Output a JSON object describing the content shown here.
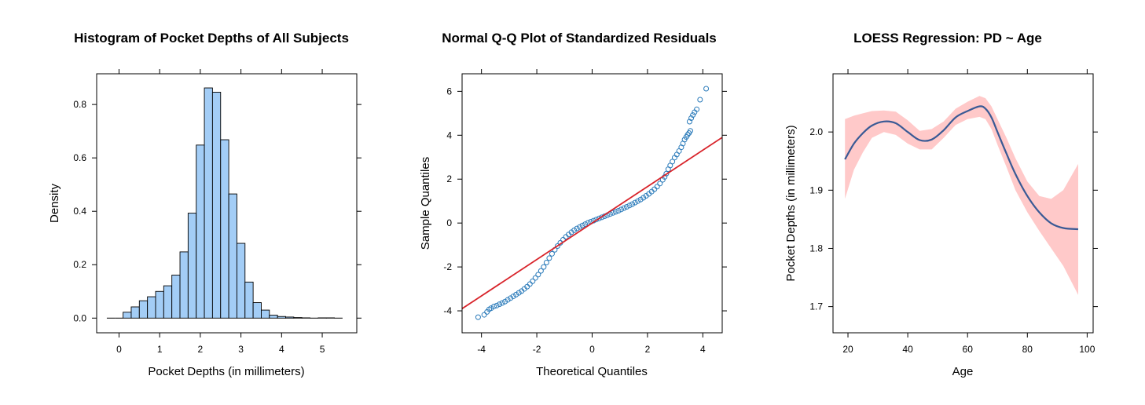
{
  "chart_data": [
    {
      "type": "bar",
      "title": "Histogram of Pocket Depths of All Subjects",
      "xlabel": "Pocket Depths (in millimeters)",
      "ylabel": "Density",
      "xlim": [
        -0.55,
        5.85
      ],
      "ylim": [
        -0.055,
        0.915
      ],
      "xticks": [
        "0",
        "1",
        "2",
        "3",
        "4",
        "5"
      ],
      "yticks": [
        "0.0",
        "0.2",
        "0.4",
        "0.6",
        "0.8"
      ],
      "bin_width": 0.2,
      "bins_start": [
        -0.3,
        -0.1,
        0.1,
        0.3,
        0.5,
        0.7,
        0.9,
        1.1,
        1.3,
        1.5,
        1.7,
        1.9,
        2.1,
        2.3,
        2.5,
        2.7,
        2.9,
        3.1,
        3.3,
        3.5,
        3.7,
        3.9,
        4.1,
        4.3,
        4.5,
        4.7,
        4.9,
        5.1,
        5.3
      ],
      "values": [
        0.0,
        0.0,
        0.022,
        0.042,
        0.065,
        0.08,
        0.1,
        0.121,
        0.161,
        0.248,
        0.393,
        0.648,
        0.862,
        0.846,
        0.668,
        0.465,
        0.28,
        0.135,
        0.058,
        0.03,
        0.011,
        0.006,
        0.004,
        0.002,
        0.001,
        0.0,
        0.001,
        0.001,
        0.0
      ],
      "bar_color": "#a3cdf6"
    },
    {
      "type": "scatter",
      "title": "Normal Q-Q Plot of Standardized Residuals",
      "xlabel": "Theoretical Quantiles",
      "ylabel": "Sample Quantiles",
      "xlim": [
        -4.7,
        4.7
      ],
      "ylim": [
        -5.0,
        6.8
      ],
      "xticks": [
        "-4",
        "-2",
        "0",
        "2",
        "4"
      ],
      "yticks": [
        "-4",
        "-2",
        "0",
        "2",
        "4",
        "6"
      ],
      "points": [
        [
          -4.12,
          -4.29
        ],
        [
          -3.9,
          -4.18
        ],
        [
          -3.8,
          -4.05
        ],
        [
          -3.72,
          -3.93
        ],
        [
          -3.65,
          -3.88
        ],
        [
          -3.55,
          -3.8
        ],
        [
          -3.45,
          -3.76
        ],
        [
          -3.35,
          -3.7
        ],
        [
          -3.25,
          -3.64
        ],
        [
          -3.15,
          -3.58
        ],
        [
          -3.05,
          -3.5
        ],
        [
          -2.95,
          -3.42
        ],
        [
          -2.85,
          -3.34
        ],
        [
          -2.75,
          -3.26
        ],
        [
          -2.65,
          -3.18
        ],
        [
          -2.55,
          -3.1
        ],
        [
          -2.45,
          -3.0
        ],
        [
          -2.35,
          -2.9
        ],
        [
          -2.25,
          -2.78
        ],
        [
          -2.15,
          -2.65
        ],
        [
          -2.05,
          -2.5
        ],
        [
          -1.95,
          -2.35
        ],
        [
          -1.85,
          -2.18
        ],
        [
          -1.75,
          -2.0
        ],
        [
          -1.65,
          -1.8
        ],
        [
          -1.55,
          -1.6
        ],
        [
          -1.45,
          -1.4
        ],
        [
          -1.35,
          -1.22
        ],
        [
          -1.25,
          -1.05
        ],
        [
          -1.15,
          -0.9
        ],
        [
          -1.05,
          -0.76
        ],
        [
          -0.95,
          -0.63
        ],
        [
          -0.85,
          -0.52
        ],
        [
          -0.75,
          -0.42
        ],
        [
          -0.65,
          -0.33
        ],
        [
          -0.55,
          -0.25
        ],
        [
          -0.45,
          -0.18
        ],
        [
          -0.35,
          -0.11
        ],
        [
          -0.25,
          -0.05
        ],
        [
          -0.15,
          0.01
        ],
        [
          -0.05,
          0.06
        ],
        [
          0.05,
          0.11
        ],
        [
          0.15,
          0.16
        ],
        [
          0.25,
          0.21
        ],
        [
          0.35,
          0.26
        ],
        [
          0.45,
          0.31
        ],
        [
          0.55,
          0.36
        ],
        [
          0.65,
          0.41
        ],
        [
          0.75,
          0.46
        ],
        [
          0.85,
          0.51
        ],
        [
          0.95,
          0.56
        ],
        [
          1.05,
          0.62
        ],
        [
          1.15,
          0.68
        ],
        [
          1.25,
          0.74
        ],
        [
          1.35,
          0.8
        ],
        [
          1.45,
          0.86
        ],
        [
          1.55,
          0.93
        ],
        [
          1.65,
          1.0
        ],
        [
          1.75,
          1.07
        ],
        [
          1.85,
          1.15
        ],
        [
          1.95,
          1.24
        ],
        [
          2.05,
          1.33
        ],
        [
          2.15,
          1.43
        ],
        [
          2.25,
          1.54
        ],
        [
          2.35,
          1.66
        ],
        [
          2.45,
          1.8
        ],
        [
          2.55,
          1.97
        ],
        [
          2.62,
          2.1
        ],
        [
          2.68,
          2.25
        ],
        [
          2.75,
          2.45
        ],
        [
          2.82,
          2.62
        ],
        [
          2.9,
          2.8
        ],
        [
          2.98,
          2.98
        ],
        [
          3.06,
          3.12
        ],
        [
          3.14,
          3.28
        ],
        [
          3.22,
          3.45
        ],
        [
          3.28,
          3.62
        ],
        [
          3.34,
          3.8
        ],
        [
          3.4,
          3.92
        ],
        [
          3.45,
          4.02
        ],
        [
          3.5,
          4.1
        ],
        [
          3.55,
          4.2
        ],
        [
          3.52,
          4.62
        ],
        [
          3.58,
          4.78
        ],
        [
          3.64,
          4.92
        ],
        [
          3.7,
          5.05
        ],
        [
          3.78,
          5.18
        ],
        [
          3.9,
          5.62
        ],
        [
          4.12,
          6.12
        ]
      ],
      "ref_line": {
        "intercept": 0.0,
        "slope": 0.83
      },
      "point_color": "#2b7bba",
      "line_color": "#d8232a"
    },
    {
      "type": "line",
      "title": "LOESS Regression: PD ~ Age",
      "xlabel": "Age",
      "ylabel": "Pocket Depths (in millimeters)",
      "xlim": [
        15,
        102
      ],
      "ylim": [
        1.655,
        2.1
      ],
      "xticks": [
        "20",
        "40",
        "60",
        "80",
        "100"
      ],
      "yticks": [
        "1.7",
        "1.8",
        "1.9",
        "2.0"
      ],
      "x": [
        19,
        22,
        25,
        28,
        32,
        36,
        40,
        44,
        48,
        52,
        56,
        60,
        64,
        66,
        68,
        70,
        73,
        76,
        80,
        84,
        88,
        92,
        97
      ],
      "y": [
        1.953,
        1.98,
        1.998,
        2.011,
        2.018,
        2.015,
        2.0,
        1.986,
        1.987,
        2.003,
        2.025,
        2.036,
        2.044,
        2.04,
        2.025,
        2.0,
        1.963,
        1.928,
        1.89,
        1.862,
        1.843,
        1.835,
        1.833
      ],
      "lower": [
        1.885,
        1.935,
        1.965,
        1.99,
        2.0,
        1.995,
        1.98,
        1.97,
        1.97,
        1.99,
        2.012,
        2.022,
        2.026,
        2.022,
        2.005,
        1.978,
        1.94,
        1.9,
        1.862,
        1.83,
        1.8,
        1.77,
        1.72
      ],
      "upper": [
        2.022,
        2.028,
        2.032,
        2.036,
        2.037,
        2.035,
        2.02,
        2.002,
        2.005,
        2.018,
        2.04,
        2.052,
        2.062,
        2.058,
        2.044,
        2.022,
        1.99,
        1.955,
        1.915,
        1.89,
        1.885,
        1.9,
        1.945
      ],
      "line_color": "#3a5a95",
      "band_color": "#ffc9c9"
    }
  ]
}
